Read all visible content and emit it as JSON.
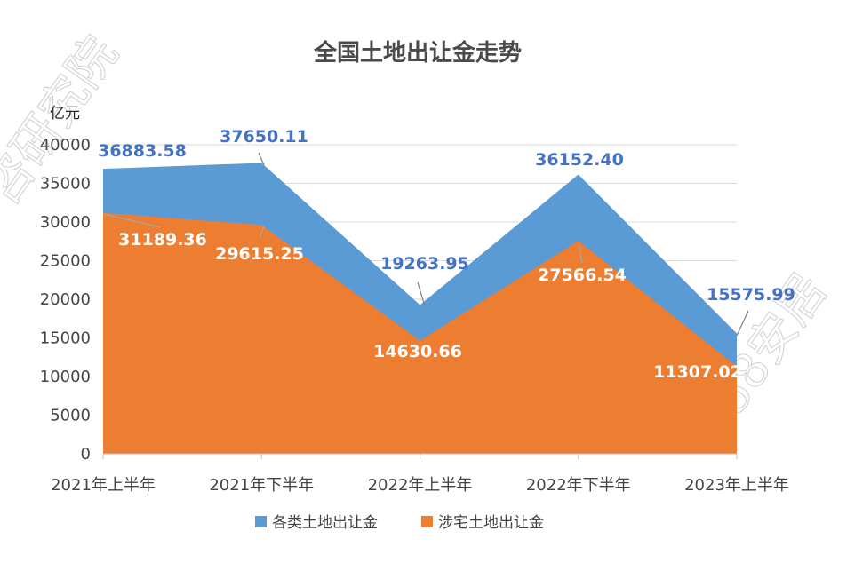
{
  "chart_data": {
    "type": "area",
    "title": "全国土地出让金走势",
    "unit_label": "亿元",
    "categories": [
      "2021年上半年",
      "2021年下半年",
      "2022年上半年",
      "2022年下半年",
      "2023年上半年"
    ],
    "series": [
      {
        "name": "各类土地出让金",
        "values": [
          36883.58,
          37650.11,
          19263.95,
          36152.4,
          15575.99
        ],
        "labels": [
          "36883.58",
          "37650.11",
          "19263.95",
          "36152.40",
          "15575.99"
        ],
        "color": "#5b9bd5"
      },
      {
        "name": "涉宅土地出让金",
        "values": [
          31189.36,
          29615.25,
          14630.66,
          27566.54,
          11307.02
        ],
        "labels": [
          "31189.36",
          "29615.25",
          "14630.66",
          "27566.54",
          "11307.02"
        ],
        "color": "#ed7d31"
      }
    ],
    "y_ticks": [
      "40000",
      "35000",
      "30000",
      "25000",
      "20000",
      "15000",
      "10000",
      "5000",
      "0"
    ],
    "ylim": [
      0,
      40000
    ],
    "grid": true,
    "legend_position": "bottom",
    "label_color_total": "#4472c4"
  },
  "watermark": {
    "top": "咨研究院",
    "right": "58安居"
  }
}
